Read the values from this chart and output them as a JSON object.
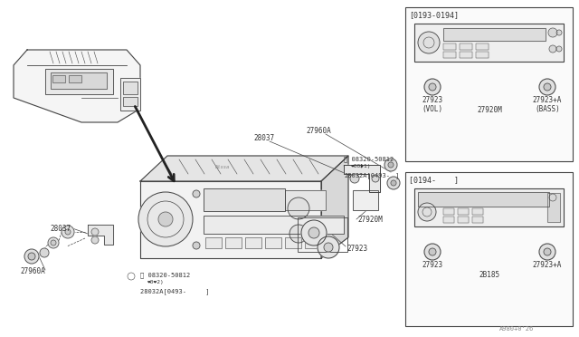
{
  "bg_color": "#ffffff",
  "lc": "#444444",
  "tc": "#333333",
  "watermark": "A980+0'26",
  "fig_width": 6.4,
  "fig_height": 3.72,
  "panel_top": {
    "bracket_label": "[0193-0194]",
    "part1_label": "27923\n(VOL)",
    "part2_label": "27923+A\n(BASS)",
    "bottom_label": "27920M"
  },
  "panel_bottom": {
    "bracket_label": "[0194-    ]",
    "part1_label": "27923",
    "part2_label": "27923+A",
    "bottom_label": "2B185"
  }
}
